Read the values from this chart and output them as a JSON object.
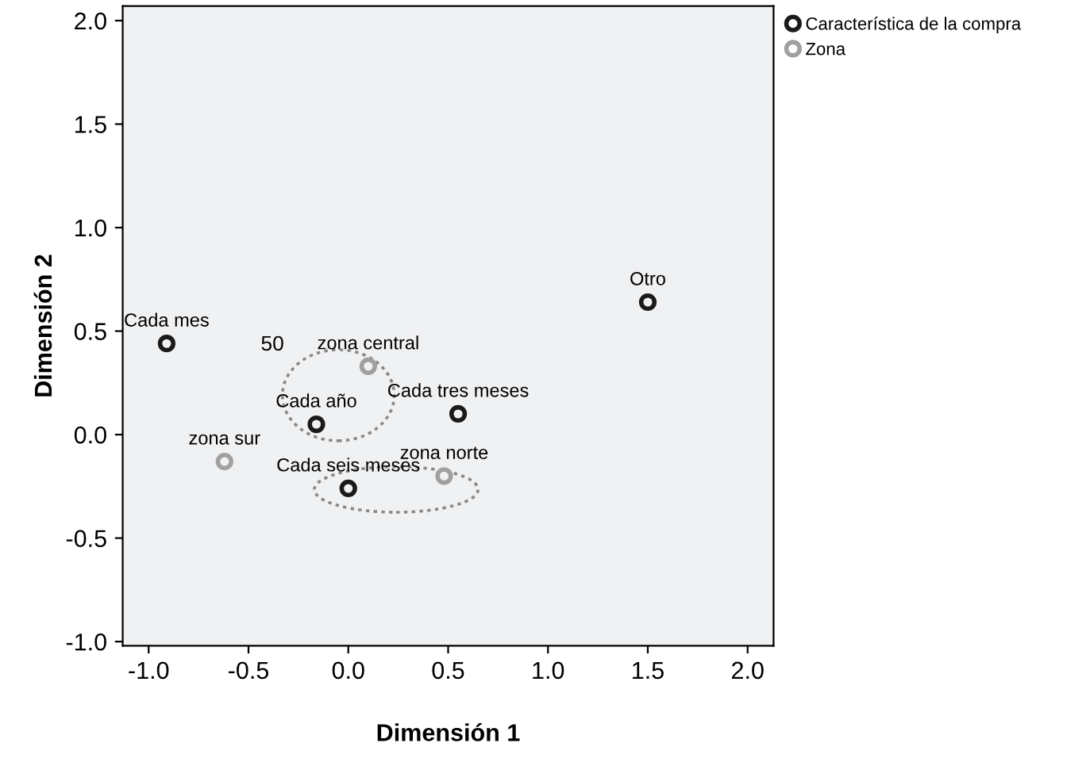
{
  "chart_data": {
    "type": "scatter",
    "xlabel": "Dimensión 1",
    "ylabel": "Dimensión 2",
    "xlim": [
      -1.13,
      2.13
    ],
    "ylim": [
      -1.02,
      2.07
    ],
    "xticks": [
      {
        "value": -1,
        "label": "-1.0"
      },
      {
        "value": -0.5,
        "label": "-0.5"
      },
      {
        "value": 0,
        "label": "0.0"
      },
      {
        "value": 0.5,
        "label": "0.5"
      },
      {
        "value": 1,
        "label": "1.0"
      },
      {
        "value": 1.5,
        "label": "1.5"
      },
      {
        "value": 2,
        "label": "2.0"
      }
    ],
    "yticks": [
      {
        "value": -1,
        "label": "-1.0"
      },
      {
        "value": -0.5,
        "label": "-0.5"
      },
      {
        "value": 0,
        "label": "0.0"
      },
      {
        "value": 0.5,
        "label": "0.5"
      },
      {
        "value": 1,
        "label": "1.0"
      },
      {
        "value": 1.5,
        "label": "1.5"
      },
      {
        "value": 2,
        "label": "2.0"
      }
    ],
    "grid": false,
    "legend": "top right",
    "marker": "circle",
    "series": [
      {
        "name": "Característica de la compra",
        "color": "#1a1a1a",
        "x": [
          -0.91,
          -0.16,
          0.55,
          0.0,
          1.5
        ],
        "values": [
          0.44,
          0.05,
          0.1,
          -0.26,
          0.64
        ]
      },
      {
        "name": "Zona",
        "color": "#a0a0a0",
        "x": [
          0.1,
          -0.62,
          0.48
        ],
        "values": [
          0.33,
          -0.13,
          -0.2
        ]
      }
    ],
    "annotations": [
      {
        "text": "Cada mes",
        "x": -0.91,
        "y": 0.44
      },
      {
        "text": "Cada año",
        "x": -0.16,
        "y": 0.05
      },
      {
        "text": "Cada tres meses",
        "x": 0.55,
        "y": 0.1
      },
      {
        "text": "Cada seis meses",
        "x": 0.0,
        "y": -0.26
      },
      {
        "text": "Otro",
        "x": 1.5,
        "y": 0.64
      },
      {
        "text": "zona central",
        "x": 0.1,
        "y": 0.33
      },
      {
        "text": "zona sur",
        "x": -0.62,
        "y": -0.13
      },
      {
        "text": "zona norte",
        "x": 0.48,
        "y": -0.2
      },
      "50"
    ]
  }
}
